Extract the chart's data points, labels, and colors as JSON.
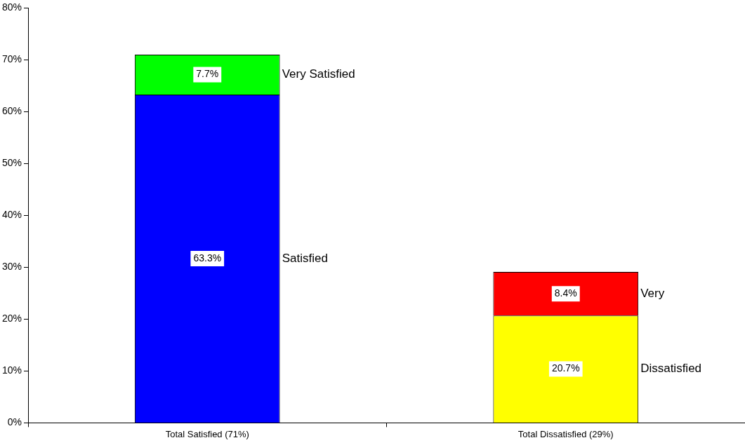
{
  "chart_data": {
    "type": "bar",
    "stacked": true,
    "categories": [
      "Total Satisfied (71%)",
      "Total Dissatisfied (29%)"
    ],
    "series": [
      {
        "name": "Satisfied",
        "color": "#0000ff",
        "values": [
          63.3,
          null
        ],
        "value_labels": [
          "63.3%",
          null
        ]
      },
      {
        "name": "Dissatisfied",
        "color": "#ffff00",
        "values": [
          null,
          20.7
        ],
        "value_labels": [
          null,
          "20.7%"
        ]
      },
      {
        "name": "Very Satisfied",
        "color": "#00ff00",
        "values": [
          7.7,
          null
        ],
        "value_labels": [
          "7.7%",
          null
        ]
      },
      {
        "name": "Very",
        "color": "#ff0000",
        "values": [
          null,
          8.4
        ],
        "value_labels": [
          null,
          "8.4%"
        ]
      }
    ],
    "ylim": [
      0,
      80
    ],
    "yticks": [
      {
        "value": 0,
        "label": "0%"
      },
      {
        "value": 10,
        "label": "10%"
      },
      {
        "value": 20,
        "label": "20%"
      },
      {
        "value": 30,
        "label": "30%"
      },
      {
        "value": 40,
        "label": "40%"
      },
      {
        "value": 50,
        "label": "50%"
      },
      {
        "value": 60,
        "label": "60%"
      },
      {
        "value": 70,
        "label": "70%"
      },
      {
        "value": 80,
        "label": "80%"
      }
    ],
    "grid": false,
    "legend": false
  }
}
